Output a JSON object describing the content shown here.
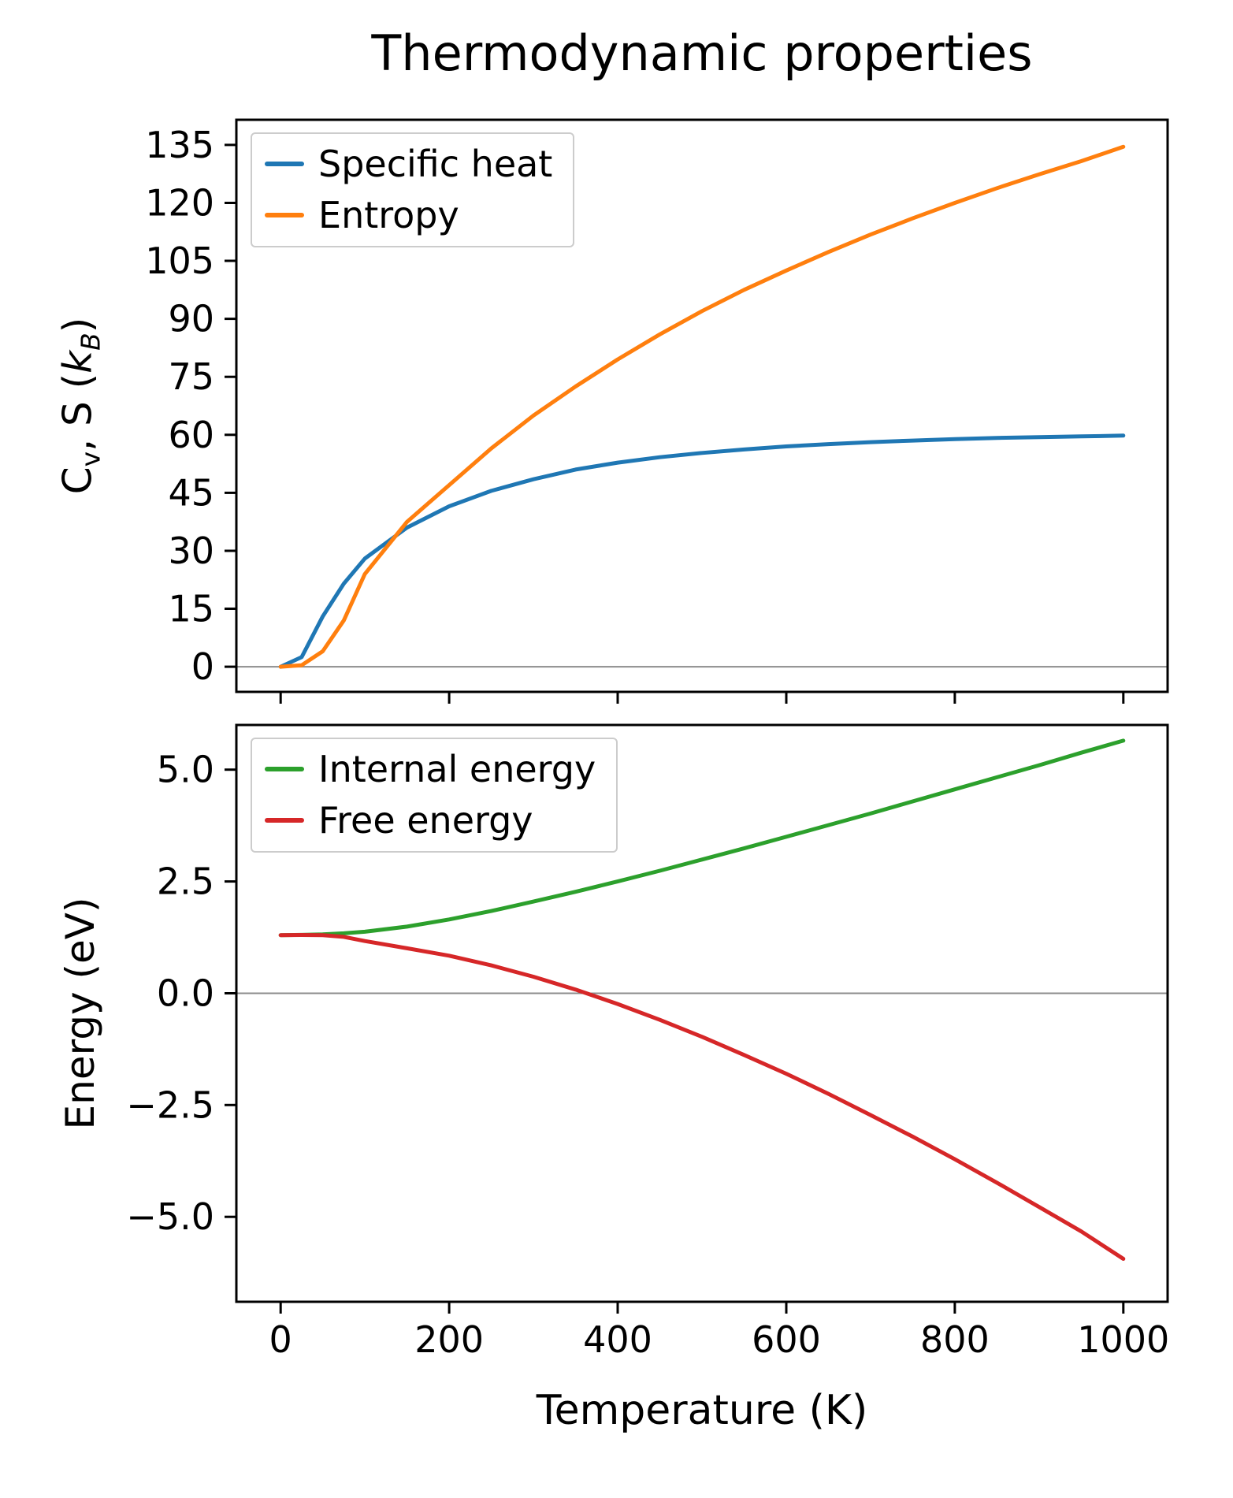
{
  "figure": {
    "title": "Thermodynamic properties",
    "background": "#ffffff"
  },
  "style": {
    "frame_color": "#000000",
    "tick_color": "#000000",
    "zero_line_color": "#8c8c8c",
    "legend_border_color": "#cccccc"
  },
  "labels": {
    "top_ylabel": {
      "c": "C",
      "v": "v",
      "mid": ", S (",
      "k": "k",
      "b": "B",
      "close": ")"
    }
  },
  "chart_data": [
    {
      "type": "line",
      "title": "Thermodynamic properties",
      "xlabel": "Temperature (K)",
      "ylabel": "Cv, S (kB)",
      "xlim": [
        -52.5,
        1052.5
      ],
      "ylim": [
        -6.5,
        141.5
      ],
      "xticks": [
        0,
        200,
        400,
        600,
        800,
        1000
      ],
      "xtick_labels": [
        "0",
        "200",
        "400",
        "600",
        "800",
        "1000"
      ],
      "yticks": [
        0,
        15,
        30,
        45,
        60,
        75,
        90,
        105,
        120,
        135
      ],
      "ytick_labels": [
        "0",
        "15",
        "30",
        "45",
        "60",
        "75",
        "90",
        "105",
        "120",
        "135"
      ],
      "grid": false,
      "zero_line": true,
      "legend_position": "upper-left",
      "x": [
        0,
        25,
        50,
        75,
        100,
        150,
        200,
        250,
        300,
        350,
        400,
        450,
        500,
        550,
        600,
        650,
        700,
        750,
        800,
        850,
        900,
        950,
        1000
      ],
      "series": [
        {
          "name": "Specific heat",
          "color": "#1f77b4",
          "values": [
            0,
            2.5,
            13,
            21.5,
            28,
            36,
            41.5,
            45.5,
            48.5,
            51,
            52.8,
            54.2,
            55.3,
            56.2,
            57.0,
            57.6,
            58.1,
            58.5,
            58.9,
            59.2,
            59.4,
            59.6,
            59.8
          ]
        },
        {
          "name": "Entropy",
          "color": "#ff7f0e",
          "values": [
            0,
            0.4,
            4,
            12,
            24,
            37.5,
            47,
            56.5,
            65,
            72.5,
            79.5,
            86,
            92,
            97.5,
            102.5,
            107.3,
            111.8,
            116,
            120,
            123.8,
            127.4,
            130.8,
            134.5
          ]
        }
      ]
    },
    {
      "type": "line",
      "title": "",
      "xlabel": "Temperature (K)",
      "ylabel": "Energy (eV)",
      "xlim": [
        -52.5,
        1052.5
      ],
      "ylim": [
        -6.9,
        6.0
      ],
      "xticks": [
        0,
        200,
        400,
        600,
        800,
        1000
      ],
      "xtick_labels": [
        "0",
        "200",
        "400",
        "600",
        "800",
        "1000"
      ],
      "yticks": [
        -5,
        -2.5,
        0,
        2.5,
        5
      ],
      "ytick_labels": [
        "−5.0",
        "−2.5",
        "0.0",
        "2.5",
        "5.0"
      ],
      "grid": false,
      "zero_line": true,
      "legend_position": "upper-left",
      "x": [
        0,
        25,
        50,
        75,
        100,
        150,
        200,
        250,
        300,
        350,
        400,
        450,
        500,
        550,
        600,
        650,
        700,
        750,
        800,
        850,
        900,
        950,
        1000
      ],
      "series": [
        {
          "name": "Internal energy",
          "color": "#2ca02c",
          "values": [
            1.3,
            1.305,
            1.315,
            1.34,
            1.375,
            1.49,
            1.65,
            1.84,
            2.05,
            2.27,
            2.5,
            2.74,
            2.99,
            3.24,
            3.5,
            3.76,
            4.02,
            4.29,
            4.56,
            4.83,
            5.1,
            5.38,
            5.65
          ]
        },
        {
          "name": "Free energy",
          "color": "#d62728",
          "values": [
            1.3,
            1.304,
            1.298,
            1.262,
            1.168,
            1.005,
            0.84,
            0.623,
            0.37,
            0.083,
            -0.24,
            -0.595,
            -0.974,
            -1.381,
            -1.8,
            -2.25,
            -2.724,
            -3.207,
            -3.712,
            -4.238,
            -4.78,
            -5.327,
            -5.94
          ]
        }
      ]
    }
  ]
}
